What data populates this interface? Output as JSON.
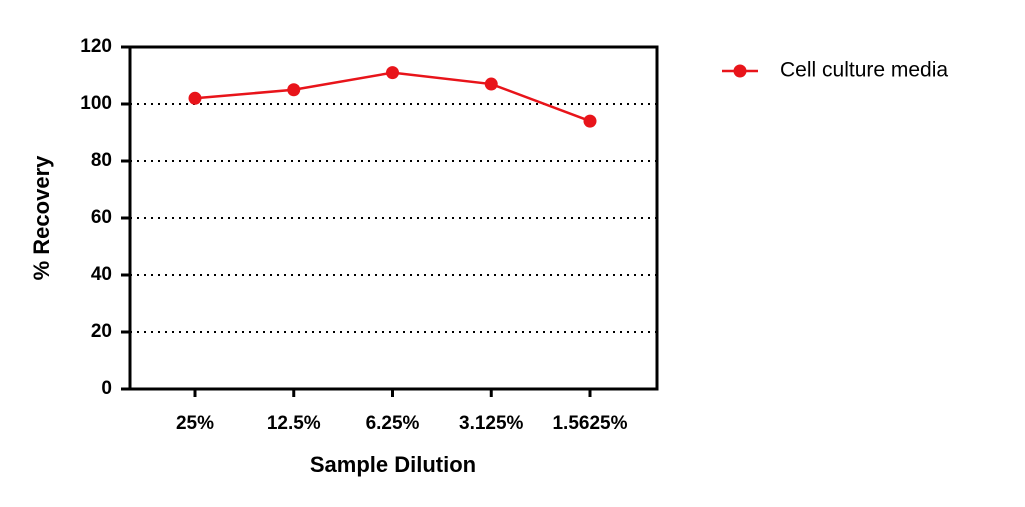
{
  "chart_data": {
    "type": "line",
    "x_label": "Sample Dilution",
    "y_label": "% Recovery",
    "categories": [
      "25%",
      "12.5%",
      "6.25%",
      "3.125%",
      "1.5625%"
    ],
    "series": [
      {
        "name": "Cell culture media",
        "color": "#e8141a",
        "values": [
          102,
          105,
          111,
          107,
          94
        ]
      }
    ],
    "ylim": [
      0,
      120
    ],
    "yticks": [
      0,
      20,
      40,
      60,
      80,
      100,
      120
    ],
    "grid": true,
    "legend": "right"
  }
}
